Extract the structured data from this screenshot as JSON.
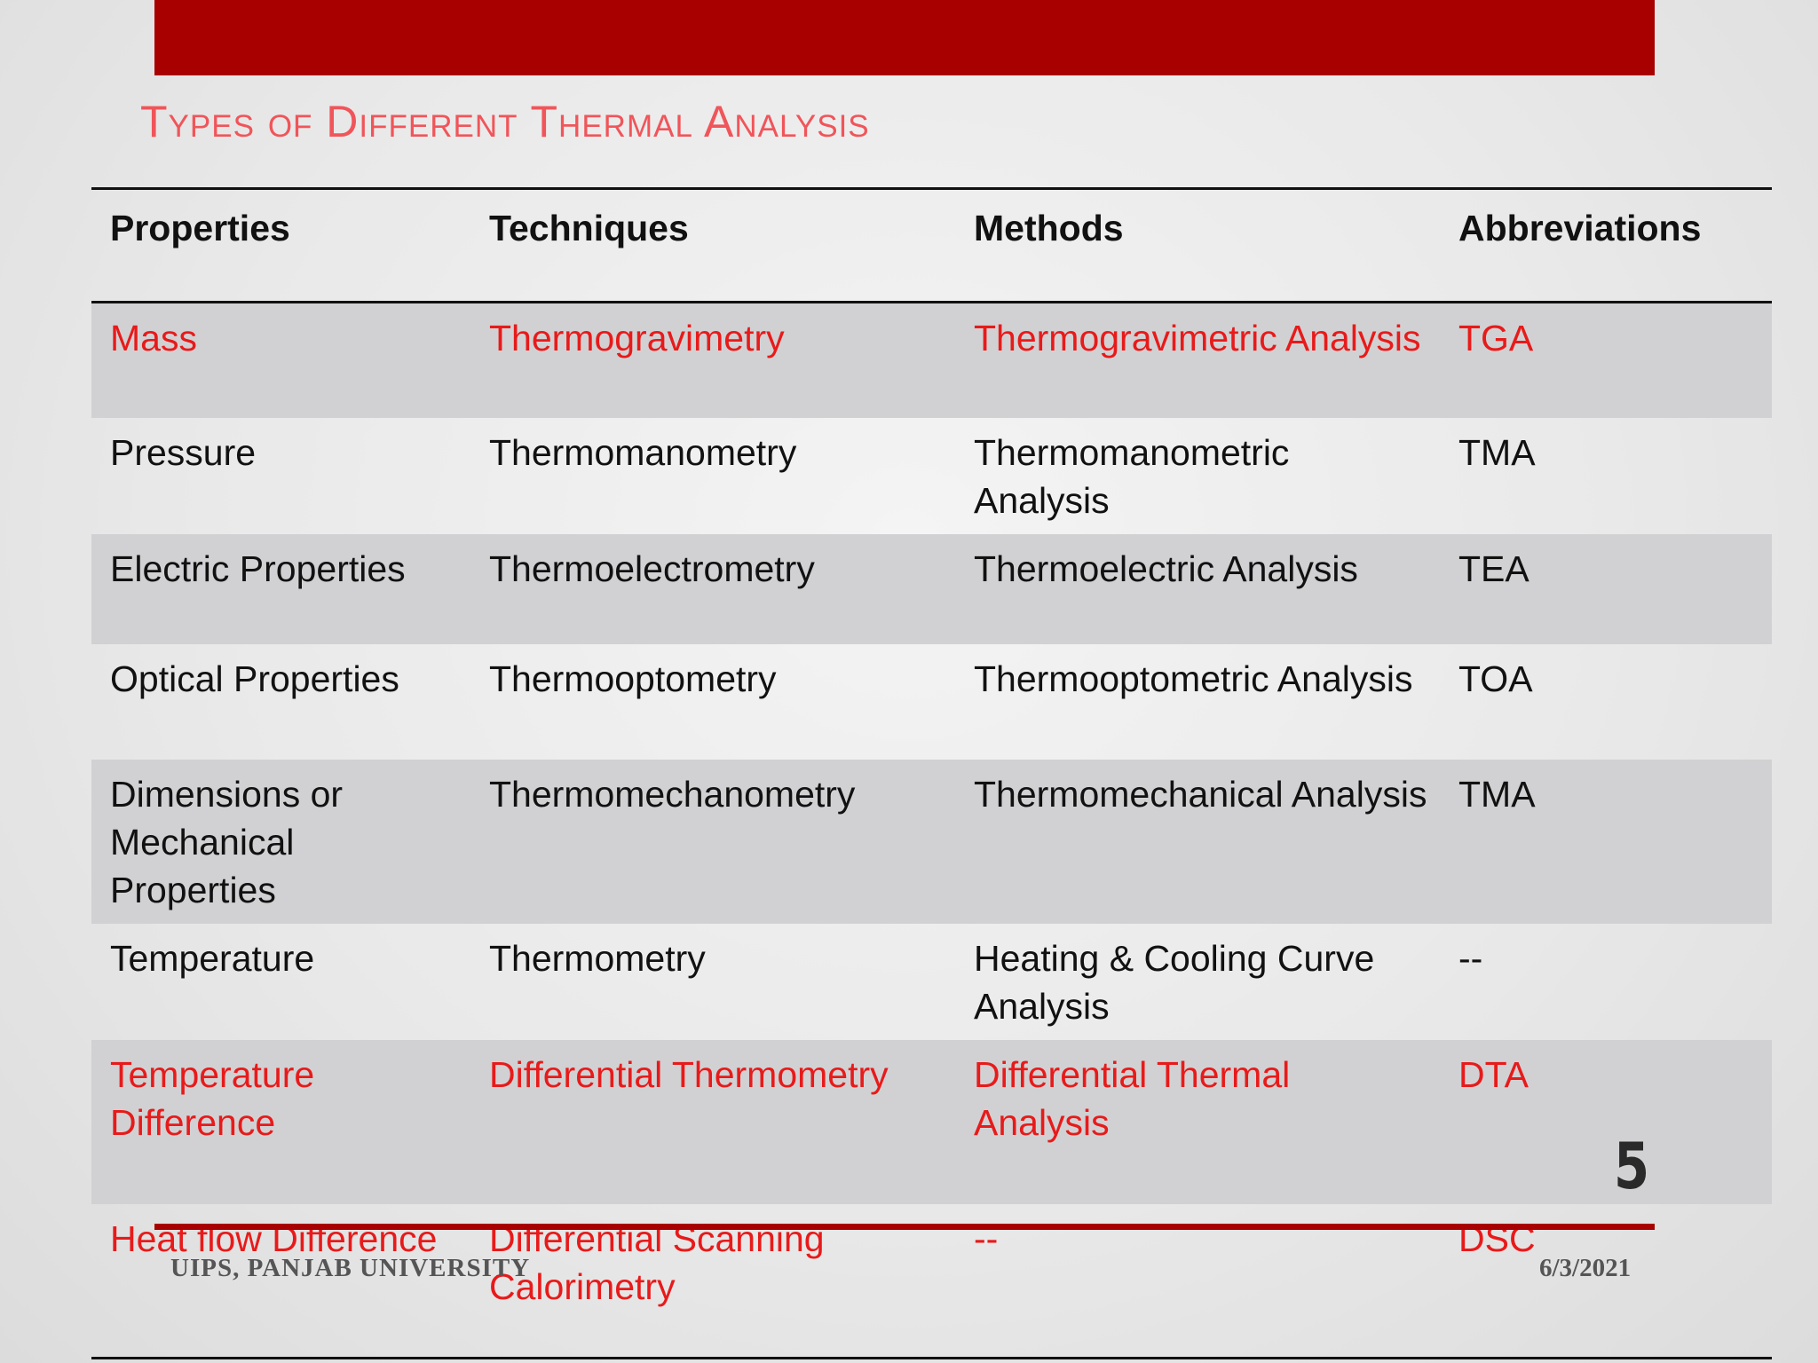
{
  "slide": {
    "title": "Types of Different Thermal Analysis",
    "slide_number": "5",
    "footer_left": "UIPS, PANJAB UNIVERSITY",
    "footer_right": "6/3/2021"
  },
  "table": {
    "headers": [
      "Properties",
      "Techniques",
      "Methods",
      "Abbreviations"
    ],
    "rows": [
      [
        "Mass",
        "Thermogravimetry",
        "Thermogravimetric Analysis",
        "TGA"
      ],
      [
        "Pressure",
        "Thermomanometry",
        "Thermomanometric Analysis",
        "TMA"
      ],
      [
        "Electric Properties",
        "Thermoelectrometry",
        "Thermoelectric Analysis",
        "TEA"
      ],
      [
        "Optical Properties",
        "Thermooptometry",
        "Thermooptometric Analysis",
        "TOA"
      ],
      [
        "Dimensions or Mechanical Properties",
        "Thermomechanometry",
        "Thermomechanical Analysis",
        "TMA"
      ],
      [
        "Temperature",
        "Thermometry",
        "Heating & Cooling Curve Analysis",
        "--"
      ],
      [
        "Temperature Difference",
        "Differential Thermometry",
        "Differential Thermal Analysis",
        "DTA"
      ],
      [
        "Heat flow Difference",
        "Differential Scanning Calorimetry",
        "--",
        "DSC"
      ]
    ]
  },
  "colors": {
    "accent_bar": "#a80000",
    "title_color": "#f0555a",
    "highlight_text": "#e81a1a",
    "row_shade": "#d1d1d3"
  }
}
